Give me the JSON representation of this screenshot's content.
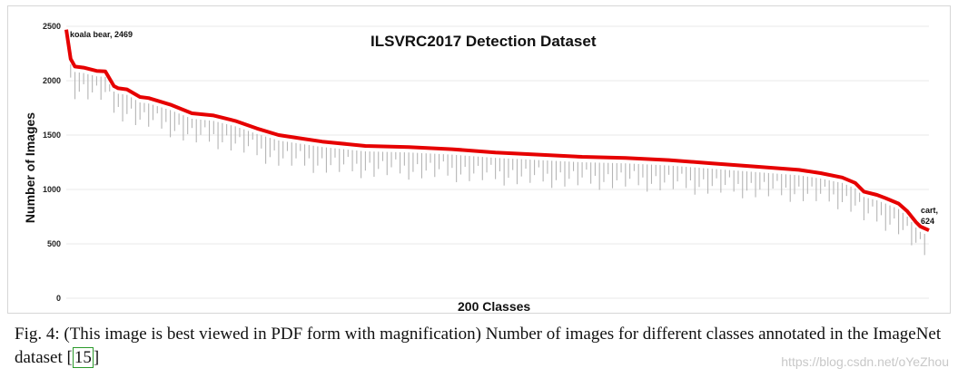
{
  "chart_data": {
    "type": "line",
    "title": "ILSVRC2017 Detection Dataset",
    "xlabel": "200 Classes",
    "ylabel": "Number of Images",
    "ylim": [
      0,
      2500
    ],
    "yticks": [
      "0",
      "500",
      "1000",
      "1500",
      "2000",
      "2500"
    ],
    "grid": true,
    "series_color": "#e60000",
    "x": [
      1,
      2,
      3,
      5,
      8,
      10,
      12,
      13,
      15,
      18,
      20,
      25,
      30,
      35,
      40,
      45,
      50,
      55,
      60,
      70,
      80,
      90,
      100,
      110,
      120,
      130,
      140,
      150,
      160,
      170,
      175,
      180,
      183,
      185,
      188,
      190,
      193,
      195,
      197,
      198,
      200
    ],
    "values": [
      2469,
      2200,
      2130,
      2120,
      2090,
      2085,
      1950,
      1930,
      1920,
      1850,
      1840,
      1780,
      1700,
      1680,
      1630,
      1560,
      1500,
      1470,
      1440,
      1400,
      1390,
      1370,
      1340,
      1320,
      1300,
      1290,
      1270,
      1240,
      1210,
      1180,
      1150,
      1110,
      1060,
      980,
      950,
      920,
      870,
      800,
      700,
      660,
      624
    ],
    "annotations": [
      {
        "text": "koala bear, 2469",
        "x": 1,
        "y": 2469
      },
      {
        "text": "cart,",
        "x": 200,
        "y": 624
      },
      {
        "text": "624",
        "x": 200,
        "y": 624
      }
    ],
    "class_labels_note": "200 tiny rotated class labels along the curve"
  },
  "caption": {
    "text": "Fig. 4: (This image is best viewed in PDF form with magnification) Number of images for different classes annotated in the ImageNet dataset [",
    "citation": "15",
    "close": "]"
  },
  "watermark": "https://blog.csdn.net/oYeZhou"
}
